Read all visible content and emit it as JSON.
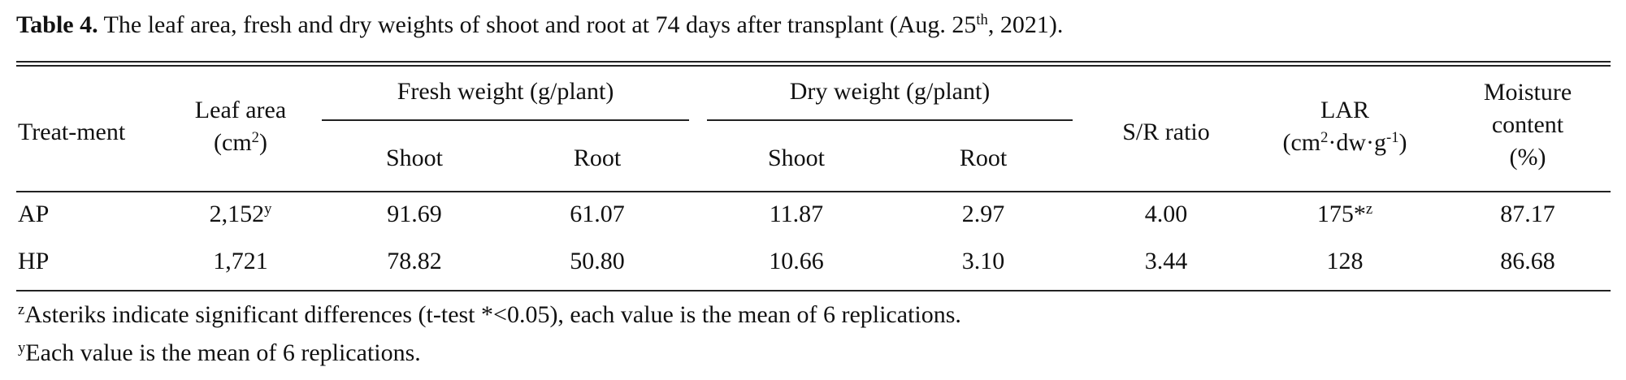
{
  "caption": {
    "label": "Table 4.",
    "text": " The leaf area, fresh and dry weights of shoot and root at 74 days after transplant (Aug. 25",
    "sup": "th",
    "end": ", 2021)."
  },
  "table": {
    "headers": {
      "treatment": "Treat-ment",
      "leaf_area": {
        "line1": "Leaf area",
        "line2_pre": "(cm",
        "line2_sup": "2",
        "line2_post": ")"
      },
      "fresh_weight": "Fresh  weight  (g/plant)",
      "dry_weight": "Dry  weight  (g/plant)",
      "shoot": "Shoot",
      "root": "Root",
      "sr_ratio": "S/R  ratio",
      "lar": {
        "line1": "LAR",
        "p1": "(cm",
        "s1": "2",
        "p2": "·dw·g",
        "s2": "-1",
        "p3": ")"
      },
      "moisture": {
        "line1": "Moisture",
        "line2": "content",
        "line3": "(%)"
      }
    },
    "rows": [
      {
        "treatment": "AP",
        "leaf_area": "2,152",
        "leaf_area_sup": "y",
        "fresh_shoot": "91.69",
        "fresh_root": "61.07",
        "dry_shoot": "11.87",
        "dry_root": "2.97",
        "sr_ratio": "4.00",
        "lar": "175*",
        "lar_sup": "z",
        "moisture": "87.17"
      },
      {
        "treatment": "HP",
        "leaf_area": "1,721",
        "leaf_area_sup": "",
        "fresh_shoot": "78.82",
        "fresh_root": "50.80",
        "dry_shoot": "10.66",
        "dry_root": "3.10",
        "sr_ratio": "3.44",
        "lar": "128",
        "lar_sup": "",
        "moisture": "86.68"
      }
    ]
  },
  "footnotes": [
    {
      "mark": "z",
      "text": "Asteriks  indicate  significant  differences  (t-test  *<0.05),  each  value  is  the  mean  of  6  replications."
    },
    {
      "mark": "y",
      "text": "Each  value  is  the  mean  of  6  replications."
    }
  ]
}
